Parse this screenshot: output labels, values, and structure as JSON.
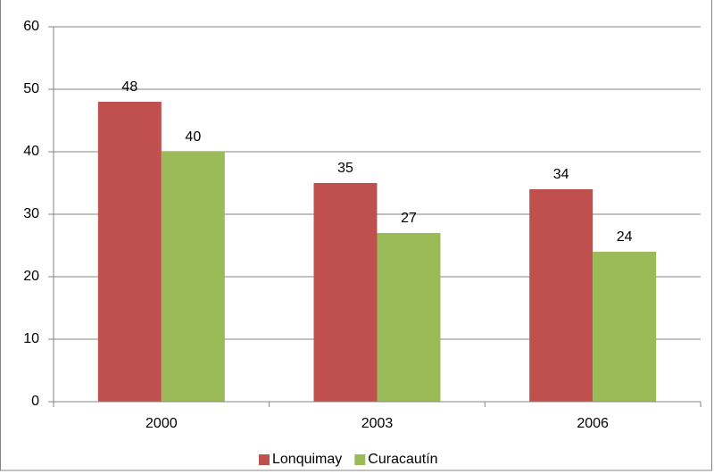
{
  "chart_data": {
    "type": "bar",
    "categories": [
      "2000",
      "2003",
      "2006"
    ],
    "series": [
      {
        "name": "Lonquimay",
        "color": "#c0504d",
        "values": [
          48,
          35,
          34
        ]
      },
      {
        "name": "Curacautín",
        "color": "#9bbb59",
        "values": [
          40,
          27,
          24
        ]
      }
    ],
    "ylim": [
      0,
      60
    ],
    "yticks": [
      0,
      10,
      20,
      30,
      40,
      50,
      60
    ],
    "grid": true,
    "legend": "bottom"
  }
}
